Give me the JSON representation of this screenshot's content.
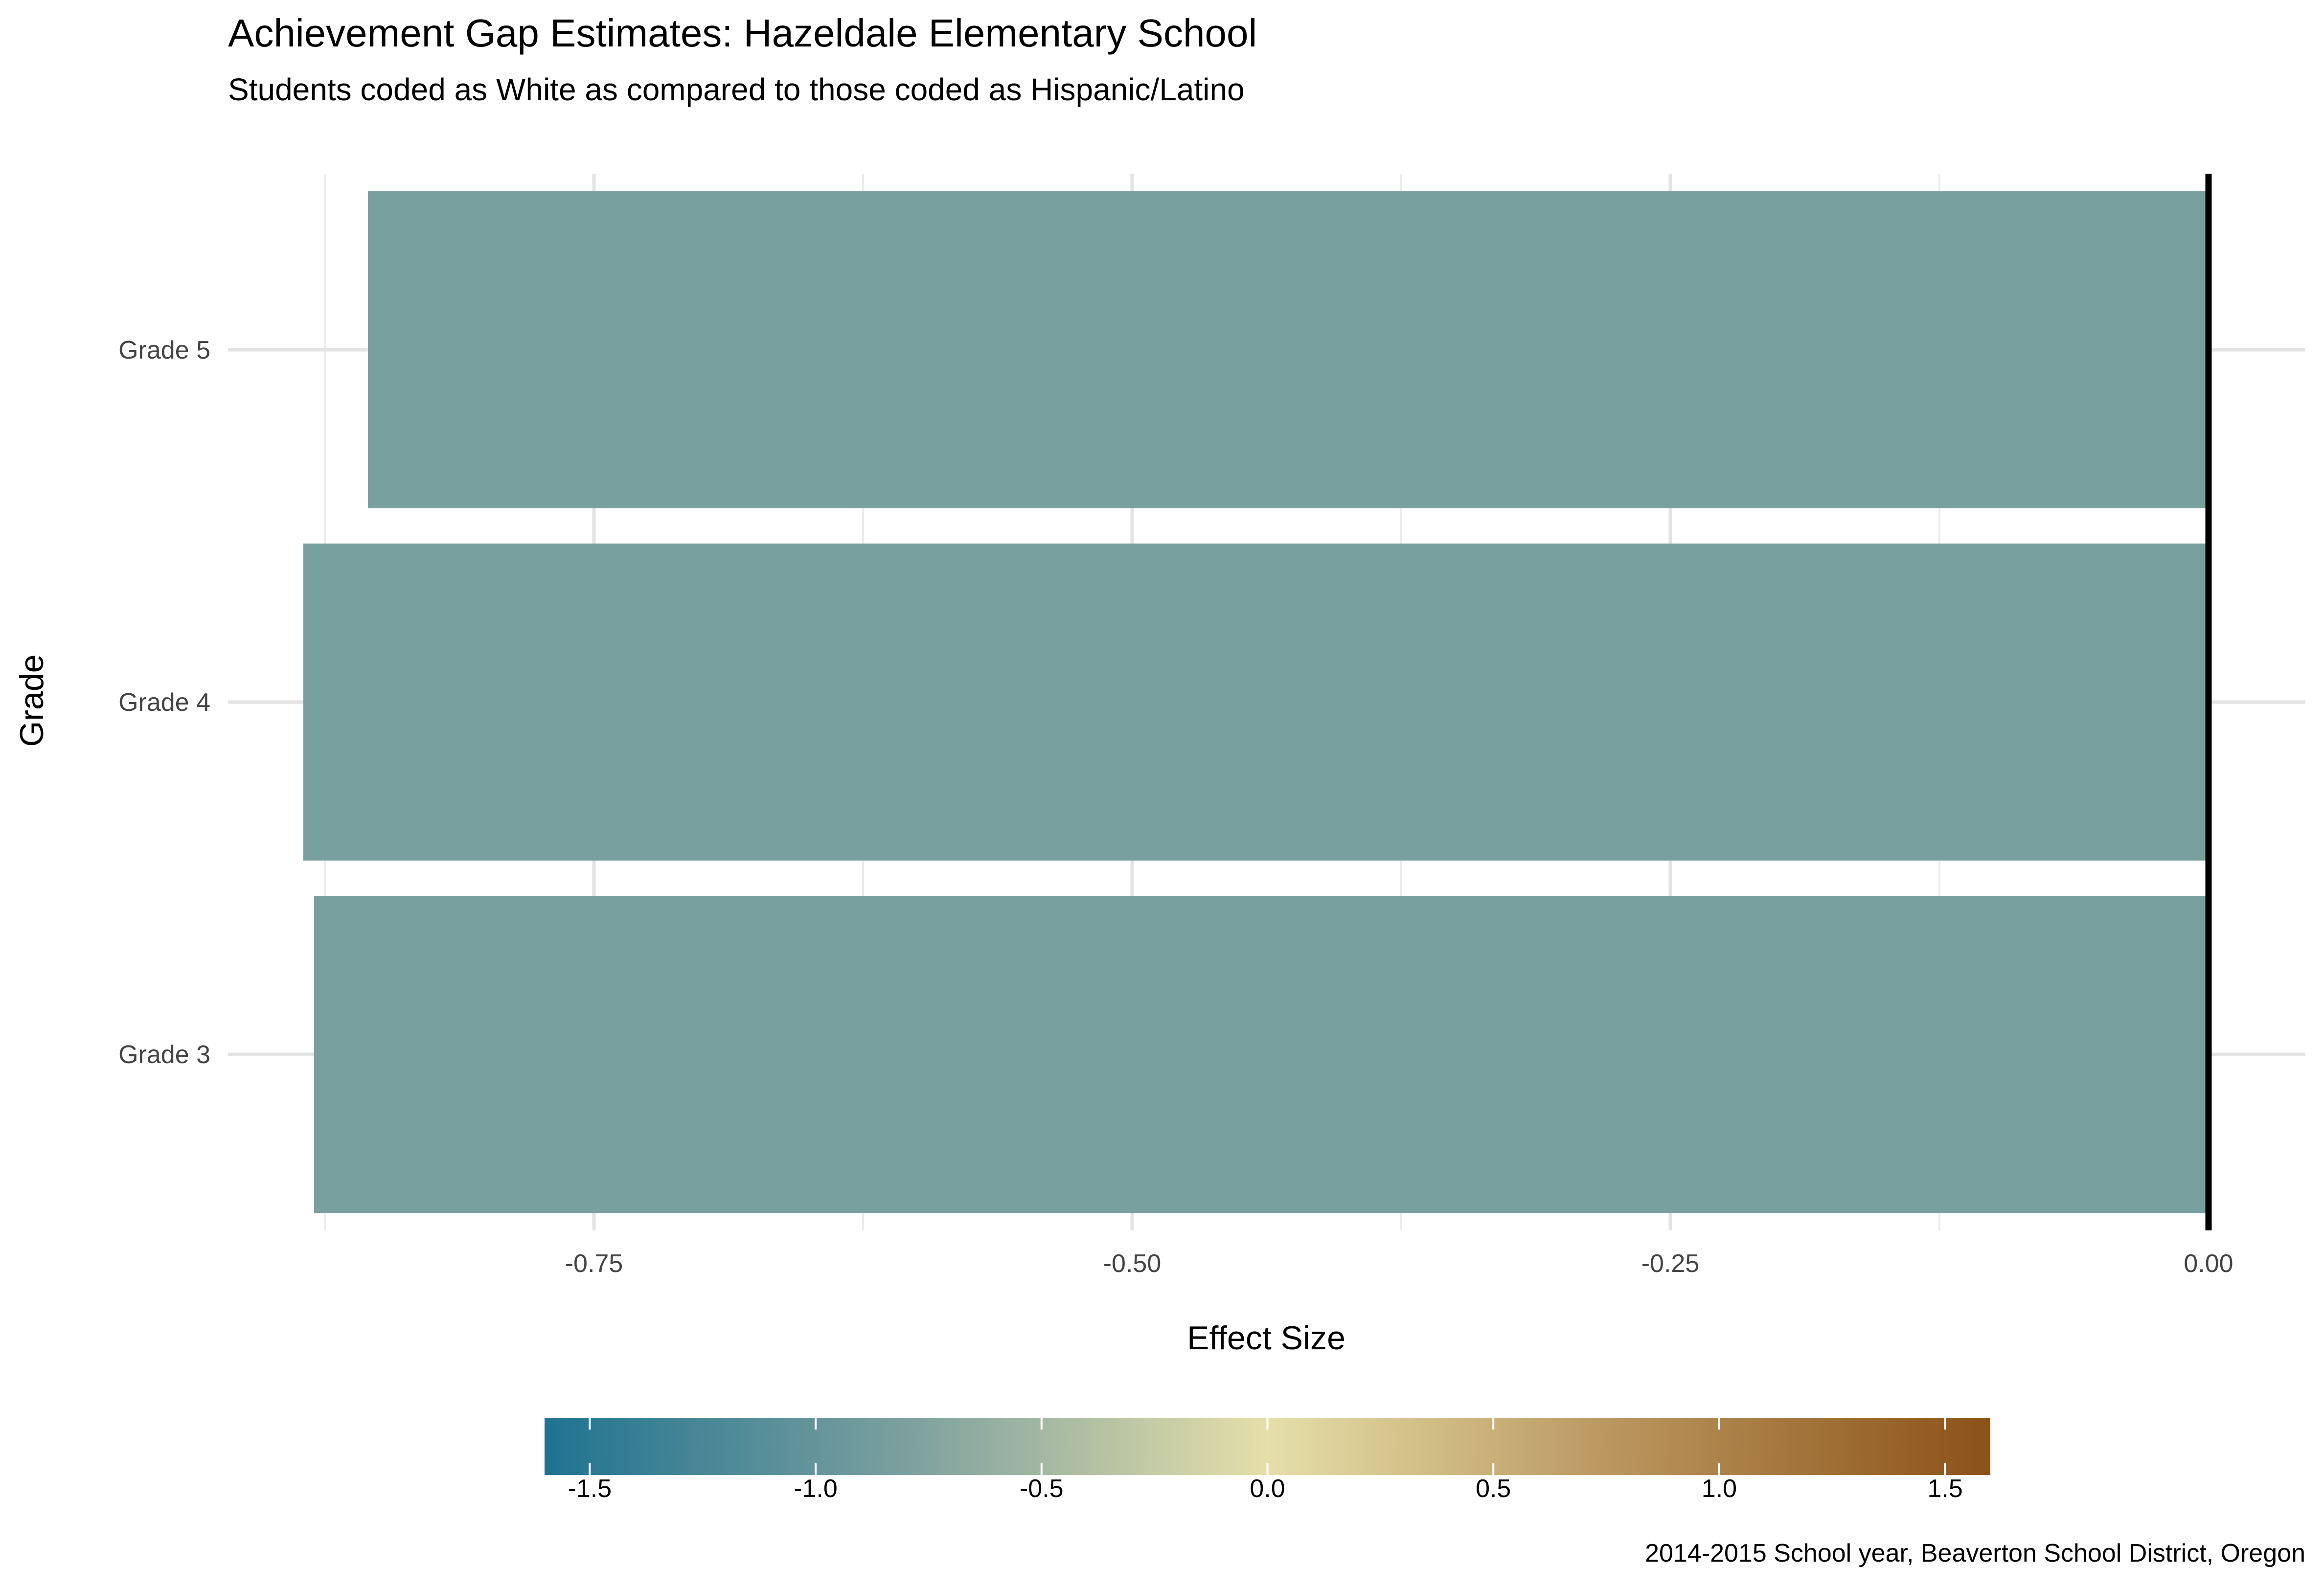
{
  "chart_data": {
    "type": "bar",
    "orientation": "horizontal",
    "title": "Achievement Gap Estimates: Hazeldale Elementary School",
    "subtitle": "Students coded as White as compared to those coded as Hispanic/Latino",
    "xlabel": "Effect Size",
    "ylabel": "Grade",
    "categories": [
      "Grade 3",
      "Grade 4",
      "Grade 5"
    ],
    "values": [
      -0.88,
      -0.885,
      -0.855
    ],
    "xlim": [
      -0.92,
      0.045
    ],
    "xticks": [
      -0.75,
      -0.5,
      -0.25,
      0
    ],
    "xtick_labels": [
      "-0.75",
      "-0.50",
      "-0.25",
      "0.00"
    ],
    "x_minor_gridlines": [
      -0.875,
      -0.625,
      -0.375,
      -0.125
    ],
    "reference_line": 0,
    "grid": true,
    "bar_color": "#78A09E",
    "caption": "2014-2015 School year, Beaverton School District, Oregon",
    "legend": {
      "type": "colorbar",
      "placement": "bottom",
      "range": [
        -1.6,
        1.6
      ],
      "ticks": [
        -1.5,
        -1.0,
        -0.5,
        0.0,
        0.5,
        1.0,
        1.5
      ],
      "tick_labels": [
        "-1.5",
        "-1.0",
        "-0.5",
        "0.0",
        "0.5",
        "1.0",
        "1.5"
      ],
      "colors": [
        "#1F7391",
        "#7CA09E",
        "#E5DFA9",
        "#B8935B",
        "#8B5218"
      ]
    }
  }
}
